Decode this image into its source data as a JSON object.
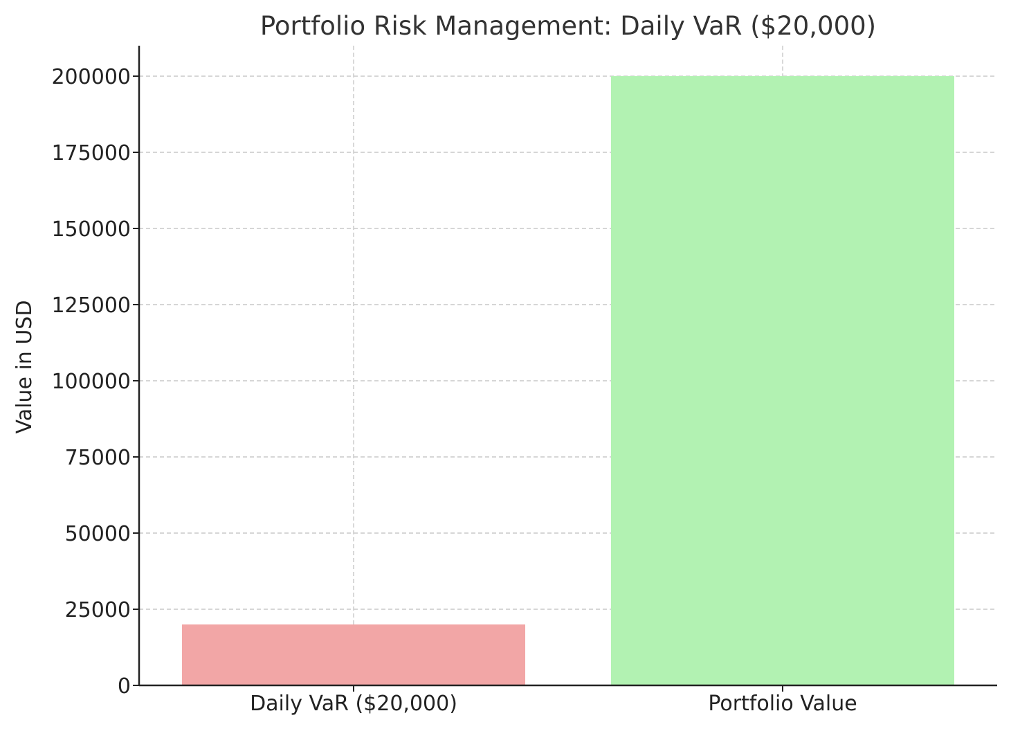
{
  "chart_data": {
    "type": "bar",
    "title": "Portfolio Risk Management: Daily VaR ($20,000)",
    "xlabel": "",
    "ylabel": "Value in USD",
    "categories": [
      "Daily VaR ($20,000)",
      "Portfolio Value"
    ],
    "values": [
      20000,
      200000
    ],
    "colors": [
      "#f2a6a6",
      "#b2f2b2"
    ],
    "ylim": [
      0,
      210000
    ],
    "yticks": [
      0,
      25000,
      50000,
      75000,
      100000,
      125000,
      150000,
      175000,
      200000
    ],
    "grid": true,
    "legend": "none"
  }
}
